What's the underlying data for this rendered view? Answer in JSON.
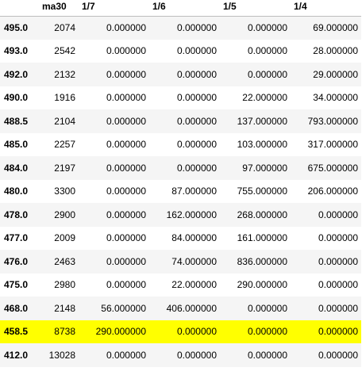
{
  "table": {
    "columns": [
      "",
      "ma30",
      "1/7",
      "1/6",
      "1/5",
      "1/4"
    ],
    "highlight_color": "#ffff00",
    "rows": [
      {
        "index": "495.0",
        "ma30": "2074",
        "c17": "0.000000",
        "c16": "0.000000",
        "c15": "0.000000",
        "c14": "69.000000",
        "highlight": false
      },
      {
        "index": "493.0",
        "ma30": "2542",
        "c17": "0.000000",
        "c16": "0.000000",
        "c15": "0.000000",
        "c14": "28.000000",
        "highlight": false
      },
      {
        "index": "492.0",
        "ma30": "2132",
        "c17": "0.000000",
        "c16": "0.000000",
        "c15": "0.000000",
        "c14": "29.000000",
        "highlight": false
      },
      {
        "index": "490.0",
        "ma30": "1916",
        "c17": "0.000000",
        "c16": "0.000000",
        "c15": "22.000000",
        "c14": "34.000000",
        "highlight": false
      },
      {
        "index": "488.5",
        "ma30": "2104",
        "c17": "0.000000",
        "c16": "0.000000",
        "c15": "137.000000",
        "c14": "793.000000",
        "highlight": false
      },
      {
        "index": "485.0",
        "ma30": "2257",
        "c17": "0.000000",
        "c16": "0.000000",
        "c15": "103.000000",
        "c14": "317.000000",
        "highlight": false
      },
      {
        "index": "484.0",
        "ma30": "2197",
        "c17": "0.000000",
        "c16": "0.000000",
        "c15": "97.000000",
        "c14": "675.000000",
        "highlight": false
      },
      {
        "index": "480.0",
        "ma30": "3300",
        "c17": "0.000000",
        "c16": "87.000000",
        "c15": "755.000000",
        "c14": "206.000000",
        "highlight": false
      },
      {
        "index": "478.0",
        "ma30": "2900",
        "c17": "0.000000",
        "c16": "162.000000",
        "c15": "268.000000",
        "c14": "0.000000",
        "highlight": false
      },
      {
        "index": "477.0",
        "ma30": "2009",
        "c17": "0.000000",
        "c16": "84.000000",
        "c15": "161.000000",
        "c14": "0.000000",
        "highlight": false
      },
      {
        "index": "476.0",
        "ma30": "2463",
        "c17": "0.000000",
        "c16": "74.000000",
        "c15": "836.000000",
        "c14": "0.000000",
        "highlight": false
      },
      {
        "index": "475.0",
        "ma30": "2980",
        "c17": "0.000000",
        "c16": "22.000000",
        "c15": "290.000000",
        "c14": "0.000000",
        "highlight": false
      },
      {
        "index": "468.0",
        "ma30": "2148",
        "c17": "56.000000",
        "c16": "406.000000",
        "c15": "0.000000",
        "c14": "0.000000",
        "highlight": false
      },
      {
        "index": "458.5",
        "ma30": "8738",
        "c17": "290.000000",
        "c16": "0.000000",
        "c15": "0.000000",
        "c14": "0.000000",
        "highlight": true
      },
      {
        "index": "412.0",
        "ma30": "13028",
        "c17": "0.000000",
        "c16": "0.000000",
        "c15": "0.000000",
        "c14": "0.000000",
        "highlight": false
      }
    ]
  }
}
